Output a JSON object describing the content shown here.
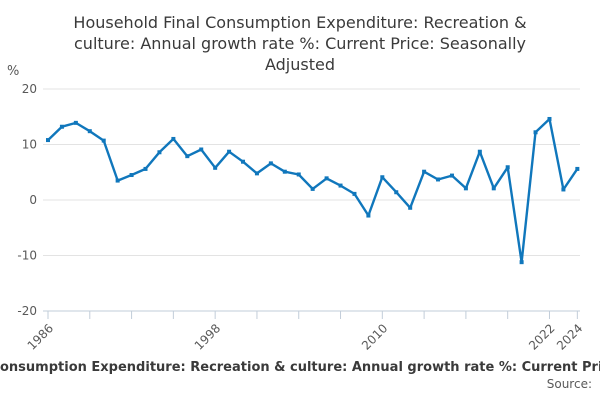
{
  "title_lines": [
    "Household Final Consumption Expenditure: Recreation &",
    "culture: Annual growth rate %: Current Price: Seasonally",
    "Adjusted"
  ],
  "y_axis_unit": "%",
  "footer_legend_text": "onsumption Expenditure: Recreation & culture: Annual growth rate %: Current Price:",
  "source_label": "Source:",
  "colors": {
    "line": "#1077bc",
    "grid": "#e3e3e3",
    "axis": "#c2cdd9",
    "tick_text": "#595959",
    "title_text": "#3a3a3a"
  },
  "chart_data": {
    "type": "line",
    "title": "Household Final Consumption Expenditure: Recreation & culture: Annual growth rate %: Current Price: Seasonally Adjusted",
    "ylabel": "%",
    "ylim": [
      -20,
      20
    ],
    "yticks": [
      20,
      10,
      0,
      -10,
      -20
    ],
    "grid": true,
    "legend_position": "none",
    "xticks_minor": [
      1986,
      1989,
      1992,
      1995,
      1998,
      2001,
      2004,
      2007,
      2010,
      2013,
      2016,
      2019,
      2022,
      2024
    ],
    "xtick_label_years": [
      1986,
      1998,
      2010,
      2022,
      2024
    ],
    "xtick_labels": [
      "1986",
      "1998",
      "2010",
      "2022",
      "2024"
    ],
    "x": [
      1986,
      1987,
      1988,
      1989,
      1990,
      1991,
      1992,
      1993,
      1994,
      1995,
      1996,
      1997,
      1998,
      1999,
      2000,
      2001,
      2002,
      2003,
      2004,
      2005,
      2006,
      2007,
      2008,
      2009,
      2010,
      2011,
      2012,
      2013,
      2014,
      2015,
      2016,
      2017,
      2018,
      2019,
      2020,
      2021,
      2022,
      2023,
      2024
    ],
    "values": [
      10.8,
      13.2,
      13.9,
      12.4,
      10.7,
      3.5,
      4.5,
      5.6,
      8.6,
      11.0,
      7.9,
      9.1,
      5.8,
      8.7,
      6.9,
      4.8,
      6.6,
      5.1,
      4.6,
      2.0,
      3.9,
      2.6,
      1.1,
      -2.8,
      4.1,
      1.4,
      -1.4,
      5.1,
      3.7,
      4.4,
      2.1,
      8.7,
      2.1,
      5.9,
      -11.2,
      12.2,
      14.6,
      1.9,
      5.6
    ]
  }
}
